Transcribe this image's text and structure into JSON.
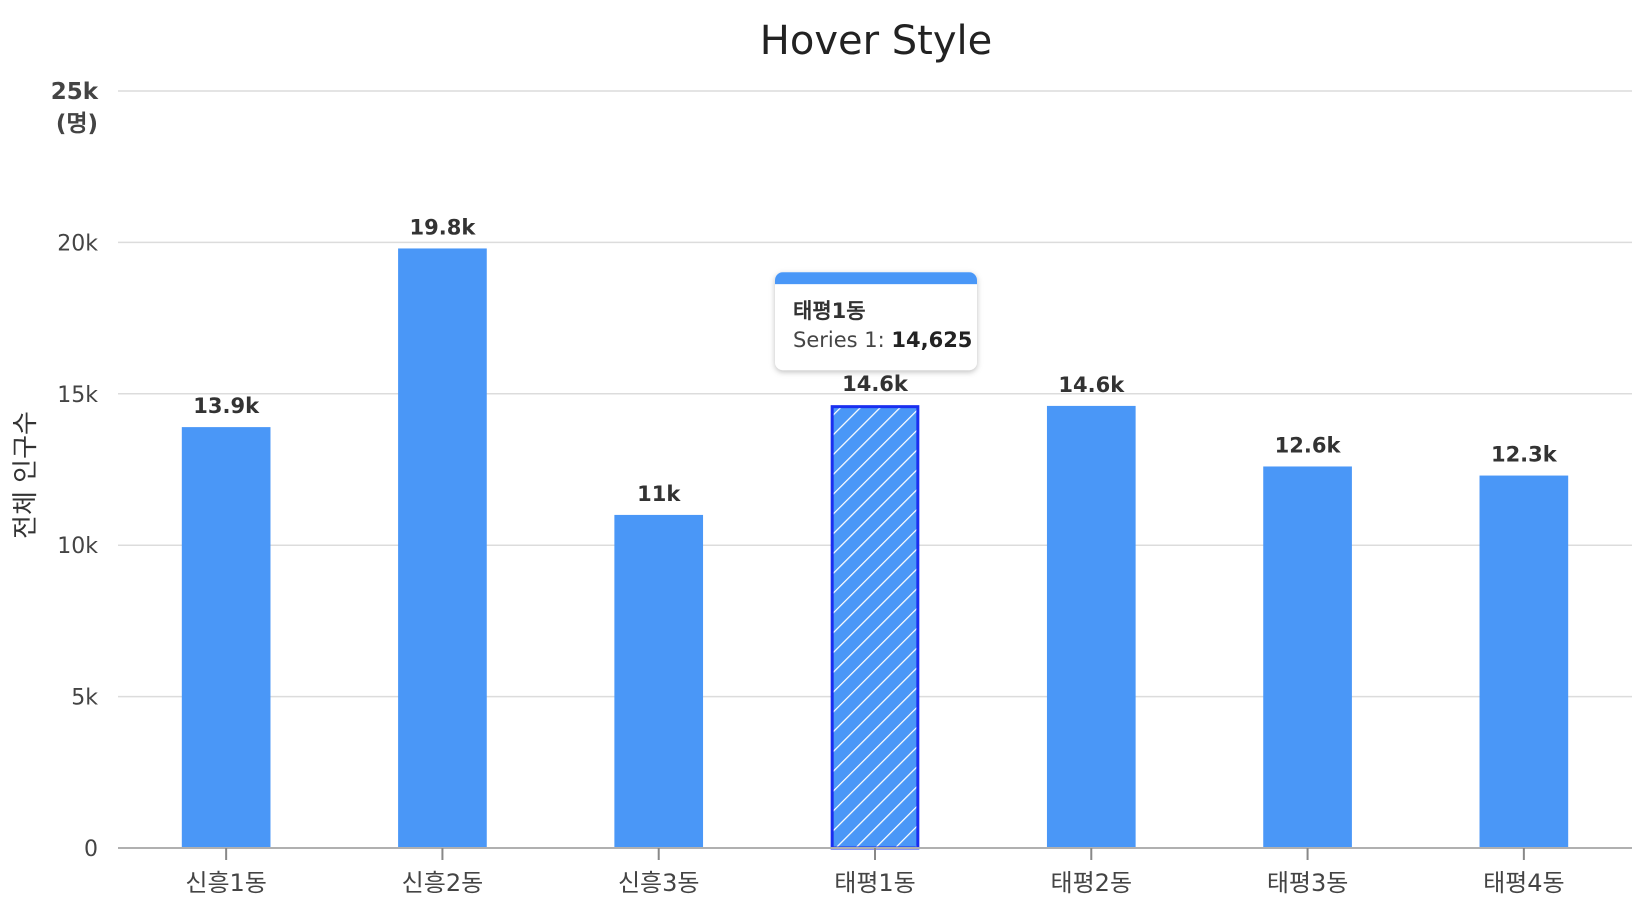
{
  "chart_data": {
    "type": "bar",
    "title": "Hover Style",
    "ylabel": "전체 인구수",
    "yunit": "(명)",
    "ylim": [
      0,
      25000
    ],
    "yticks": [
      0,
      5000,
      10000,
      15000,
      20000,
      25000
    ],
    "ytick_labels": [
      "0",
      "5k",
      "10k",
      "15k",
      "20k",
      "25k"
    ],
    "categories": [
      "신흥1동",
      "신흥2동",
      "신흥3동",
      "태평1동",
      "태평2동",
      "태평3동",
      "태평4동"
    ],
    "series": [
      {
        "name": "Series 1",
        "values": [
          13900,
          19800,
          11000,
          14625,
          14600,
          12600,
          12300
        ],
        "data_labels": [
          "13.9k",
          "19.8k",
          "11k",
          "14.6k",
          "14.6k",
          "12.6k",
          "12.3k"
        ]
      }
    ],
    "grid": true,
    "legend": "none",
    "hovered_index": 3,
    "tooltip": {
      "title": "태평1동",
      "series_label": "Series 1: ",
      "value_text": "14,625"
    },
    "colors": {
      "bar": "#4a97f7",
      "hover_fill": "#4a97f7",
      "hover_border": "#1a2ff0",
      "tooltip_header": "#4a97f7"
    }
  }
}
